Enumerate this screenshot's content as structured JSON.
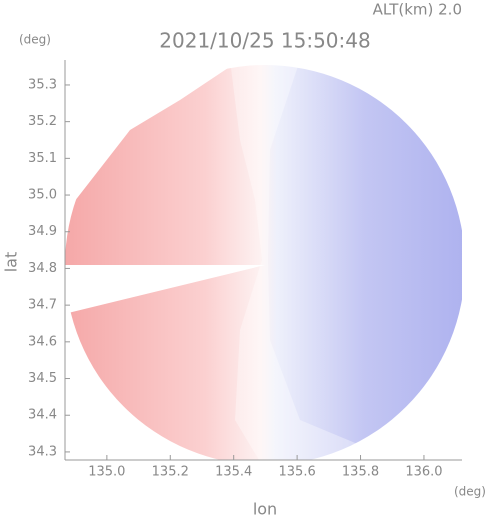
{
  "chart_data": {
    "type": "radar-ppi",
    "title": "2021/10/25 15:50:48",
    "subtitle": "ALT(km) 2.0",
    "x_label": "lon",
    "x_unit": "(deg)",
    "y_label": "lat",
    "y_unit": "(deg)",
    "xlim": [
      134.868,
      136.12
    ],
    "ylim": [
      34.278,
      35.368
    ],
    "xticks": [
      {
        "value": 135.0,
        "label": "135.0"
      },
      135.2,
      135.4,
      135.6,
      135.8,
      {
        "value": 136.0,
        "label": "136.0"
      }
    ],
    "yticks": [
      34.3,
      34.4,
      34.5,
      34.6,
      34.7,
      34.8,
      34.9,
      {
        "value": 35.0,
        "label": "35.0"
      },
      35.1,
      35.2,
      35.3
    ]
  }
}
